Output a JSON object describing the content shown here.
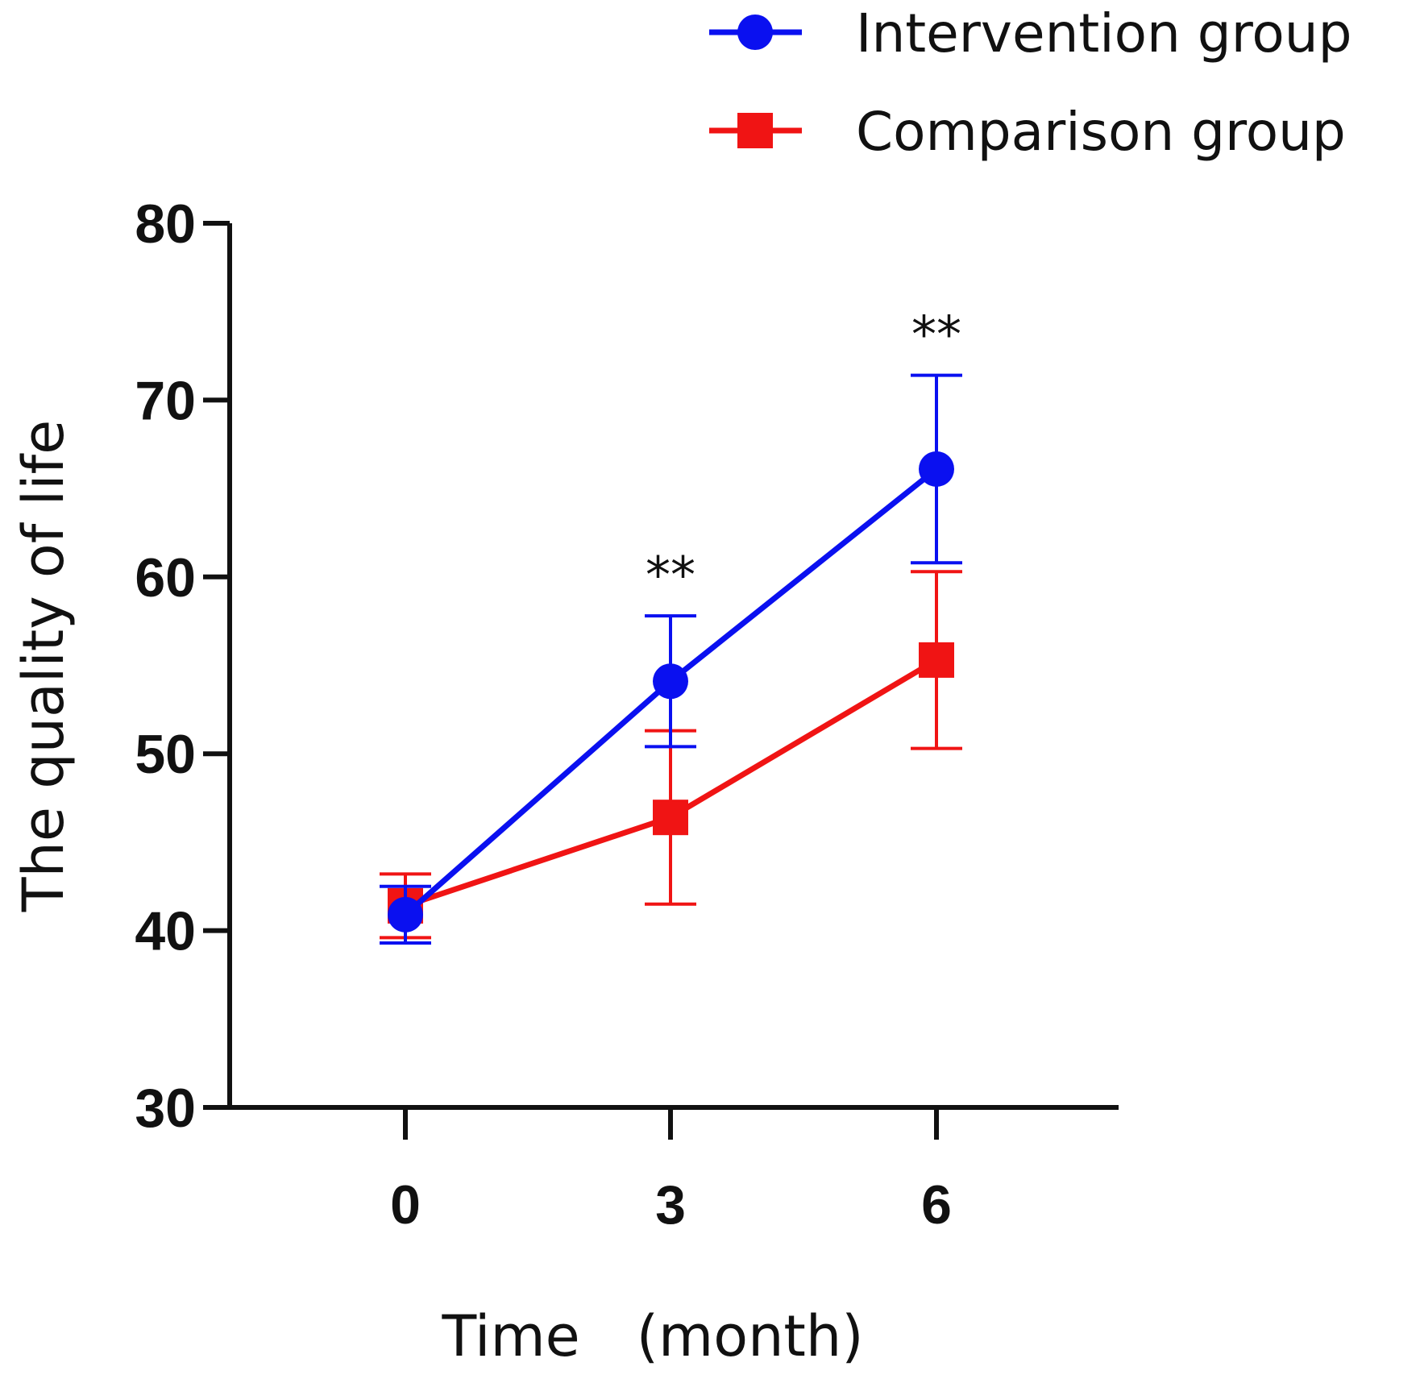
{
  "chart_data": {
    "type": "line",
    "title": "",
    "xlabel": "Time　(month)",
    "ylabel": "The quality of life",
    "x": [
      0,
      3,
      6
    ],
    "x_tick_labels": [
      "0",
      "3",
      "6"
    ],
    "ylim": [
      30,
      80
    ],
    "y_ticks": [
      30,
      40,
      50,
      60,
      70,
      80
    ],
    "grid": false,
    "legend_position": "top-right",
    "series": [
      {
        "name": "Intervention group",
        "color": "#0a10f0",
        "marker": "circle",
        "values": [
          40.9,
          54.1,
          66.1
        ],
        "error": [
          1.6,
          3.7,
          5.3
        ]
      },
      {
        "name": "Comparison group",
        "color": "#f01414",
        "marker": "square",
        "values": [
          41.4,
          46.4,
          55.3
        ],
        "error": [
          1.8,
          4.9,
          5.0
        ]
      }
    ],
    "annotations": [
      {
        "x": 3,
        "y": 60.4,
        "text": "**"
      },
      {
        "x": 6,
        "y": 74.0,
        "text": "**"
      }
    ]
  }
}
